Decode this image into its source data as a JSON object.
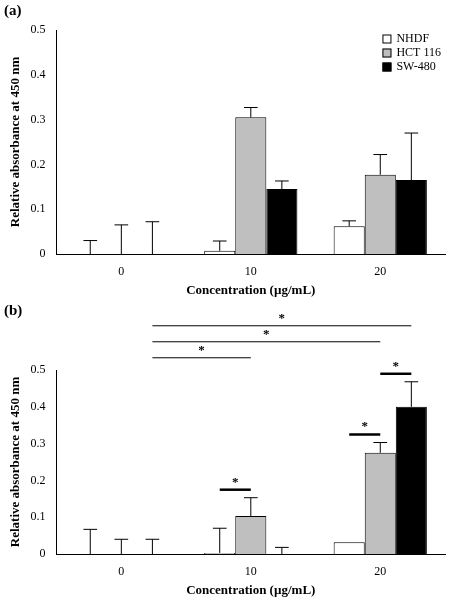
{
  "chart_data": [
    {
      "type": "bar",
      "title": "(a)",
      "x_label": "Concentration (µg/mL)",
      "y_label": "Relative absorbance at 450 nm",
      "categories": [
        "0",
        "10",
        "20"
      ],
      "series": [
        {
          "name": "NHDF",
          "color": "#ffffff",
          "values": [
            0,
            0.007,
            0.062
          ],
          "errors": [
            0.03,
            0.022,
            0.012
          ]
        },
        {
          "name": "HCT 116",
          "color": "#bfbfbf",
          "values": [
            0,
            0.305,
            0.177
          ],
          "errors": [
            0.065,
            0.022,
            0.045
          ]
        },
        {
          "name": "SW-480",
          "color": "#000000",
          "values": [
            0,
            0.145,
            0.165
          ],
          "errors": [
            0.072,
            0.018,
            0.105
          ]
        }
      ],
      "ylim": [
        0,
        0.5
      ],
      "yticks": [
        0,
        0.1,
        0.2,
        0.3,
        0.4,
        0.5
      ],
      "grid": false,
      "legend": "top-right"
    },
    {
      "type": "bar",
      "title": "(b)",
      "x_label": "Concentration (µg/mL)",
      "y_label": "Relative absorbance at 450 nm",
      "categories": [
        "0",
        "10",
        "20"
      ],
      "series": [
        {
          "name": "NHDF",
          "color": "#ffffff",
          "values": [
            0,
            0.003,
            0.032
          ],
          "errors": [
            0.067,
            0.067,
            0
          ]
        },
        {
          "name": "HCT 116",
          "color": "#bfbfbf",
          "values": [
            0,
            0.103,
            0.275
          ],
          "errors": [
            0.04,
            0.05,
            0.028
          ]
        },
        {
          "name": "SW-480",
          "color": "#000000",
          "values": [
            0,
            0,
            0.4
          ],
          "errors": [
            0.04,
            0.018,
            0.068
          ]
        }
      ],
      "ylim": [
        0,
        0.5
      ],
      "yticks": [
        0,
        0.1,
        0.2,
        0.3,
        0.4,
        0.5
      ],
      "grid": false,
      "significance": [
        {
          "from": {
            "category": "10",
            "series": "NHDF"
          },
          "to": {
            "category": "10",
            "series": "HCT 116"
          },
          "label": "*"
        },
        {
          "from": {
            "category": "20",
            "series": "NHDF"
          },
          "to": {
            "category": "20",
            "series": "HCT 116"
          },
          "label": "*"
        },
        {
          "from": {
            "category": "20",
            "series": "HCT 116"
          },
          "to": {
            "category": "20",
            "series": "SW-480"
          },
          "label": "*"
        },
        {
          "from": {
            "category": "0",
            "series": "SW-480"
          },
          "to": {
            "category": "10",
            "series": "HCT 116"
          },
          "label": "*"
        },
        {
          "from": {
            "category": "0",
            "series": "SW-480"
          },
          "to": {
            "category": "20",
            "series": "HCT 116"
          },
          "label": "*"
        },
        {
          "from": {
            "category": "0",
            "series": "SW-480"
          },
          "to": {
            "category": "20",
            "series": "SW-480"
          },
          "label": "*"
        }
      ]
    }
  ]
}
